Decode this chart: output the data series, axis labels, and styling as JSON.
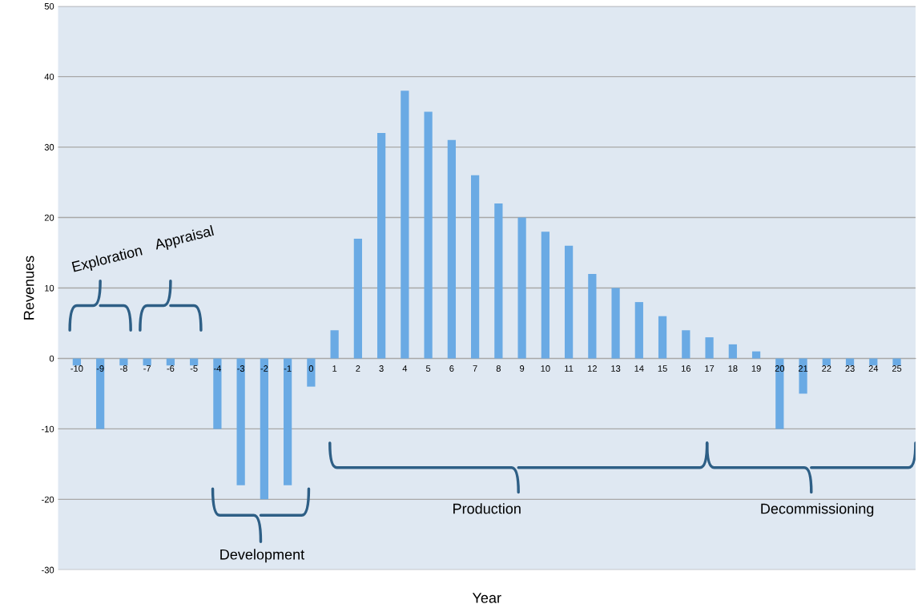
{
  "chart_data": {
    "type": "bar",
    "xlabel": "Year",
    "ylabel": "Revenues",
    "categories": [
      "-10",
      "-9",
      "-8",
      "-7",
      "-6",
      "-5",
      "-4",
      "-3",
      "-2",
      "-1",
      "0",
      "1",
      "2",
      "3",
      "4",
      "5",
      "6",
      "7",
      "8",
      "9",
      "10",
      "11",
      "12",
      "13",
      "14",
      "15",
      "16",
      "17",
      "18",
      "19",
      "20",
      "21",
      "22",
      "23",
      "24",
      "25"
    ],
    "values": [
      -1,
      -10,
      -1,
      -1,
      -1,
      -1,
      -10,
      -18,
      -20,
      -18,
      -4,
      4,
      17,
      32,
      38,
      35,
      31,
      26,
      22,
      20,
      18,
      16,
      12,
      10,
      8,
      6,
      4,
      3,
      2,
      1,
      -10,
      -5,
      -1,
      -1,
      -1,
      -1
    ],
    "color": "#6aaae4",
    "ylim": [
      -30,
      50
    ],
    "yticks": [
      -30,
      -20,
      -10,
      0,
      10,
      20,
      30,
      40,
      50
    ],
    "grid": "y",
    "annotations": [
      "Exploration",
      "Appraisal",
      "Development",
      "Production",
      "Decommissioning"
    ]
  }
}
